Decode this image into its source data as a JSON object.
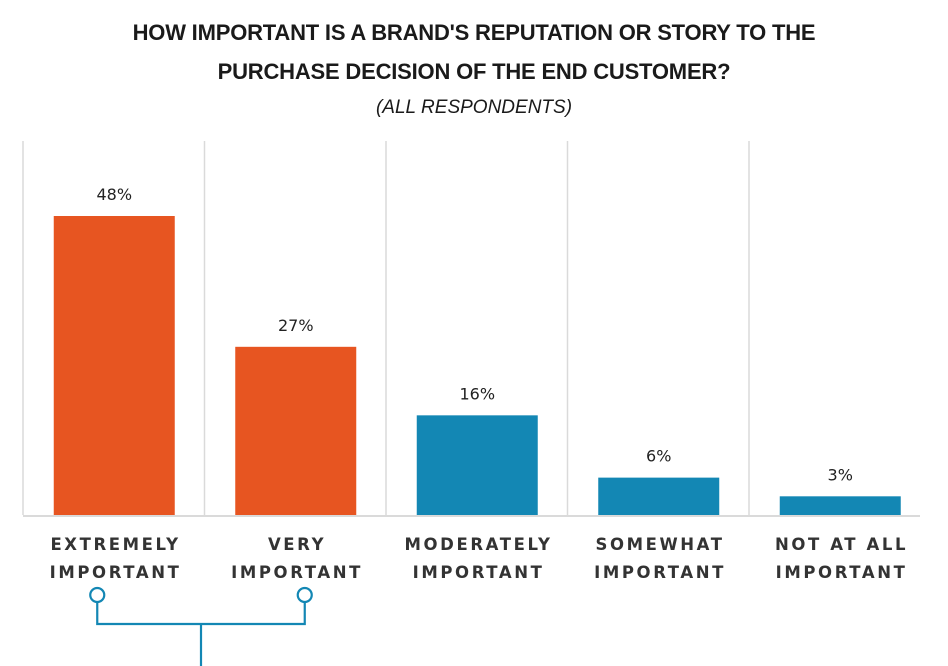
{
  "chart_data": {
    "type": "bar",
    "title_lines": [
      "HOW IMPORTANT IS A BRAND'S REPUTATION OR STORY TO THE",
      "PURCHASE DECISION OF THE END CUSTOMER?"
    ],
    "subtitle": "(ALL RESPONDENTS)",
    "categories": [
      [
        "EXTREMELY",
        "IMPORTANT"
      ],
      [
        "VERY",
        "IMPORTANT"
      ],
      [
        "MODERATELY",
        "IMPORTANT"
      ],
      [
        "SOMEWHAT",
        "IMPORTANT"
      ],
      [
        "NOT AT ALL",
        "IMPORTANT"
      ]
    ],
    "values": [
      48,
      27,
      16,
      6,
      3
    ],
    "value_labels": [
      "48%",
      "27%",
      "16%",
      "6%",
      "3%"
    ],
    "bar_colors": [
      "#E75521",
      "#E75521",
      "#1387B4",
      "#1387B4",
      "#1387B4"
    ],
    "xlabel": "",
    "ylabel": "",
    "ylim": [
      0,
      60
    ],
    "grid": "vertical separators",
    "bracket_groups": [
      [
        0,
        1
      ]
    ],
    "bracket_color": "#1387B4",
    "gridline_color": "#DADADA"
  }
}
